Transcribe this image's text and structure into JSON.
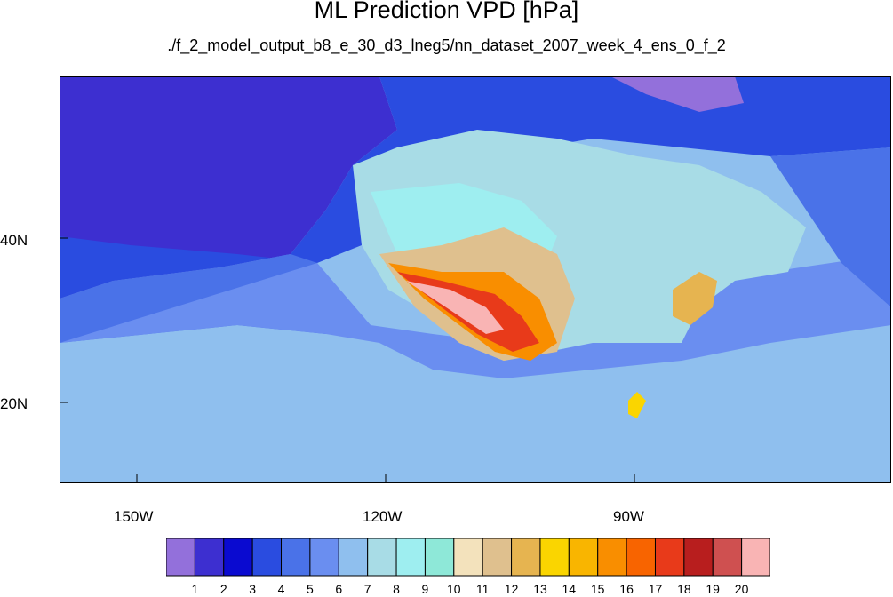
{
  "title": "ML Prediction VPD [hPa]",
  "subtitle": "./f_2_model_output_b8_e_30_d3_lneg5/nn_dataset_2007_week_4_ens_0_f_2",
  "axes": {
    "lon_labels": [
      "150W",
      "120W",
      "90W"
    ],
    "lat_labels": [
      "40N",
      "20N"
    ]
  },
  "colorbar": {
    "labels": [
      "1",
      "2",
      "3",
      "4",
      "5",
      "6",
      "7",
      "8",
      "9",
      "10",
      "11",
      "12",
      "13",
      "14",
      "15",
      "16",
      "17",
      "18",
      "19",
      "20"
    ],
    "colors": [
      "#9370db",
      "#3d2fd0",
      "#0a0ad0",
      "#2a4ce0",
      "#4a72e8",
      "#6a8ef0",
      "#8fbfee",
      "#a8dce6",
      "#9eeef0",
      "#8ee8d8",
      "#f3e2bc",
      "#dfc08e",
      "#e6b450",
      "#fad500",
      "#f9b500",
      "#f98e00",
      "#f86400",
      "#e83a1a",
      "#b81e1e",
      "#cf5050",
      "#f9b4b4"
    ]
  }
}
